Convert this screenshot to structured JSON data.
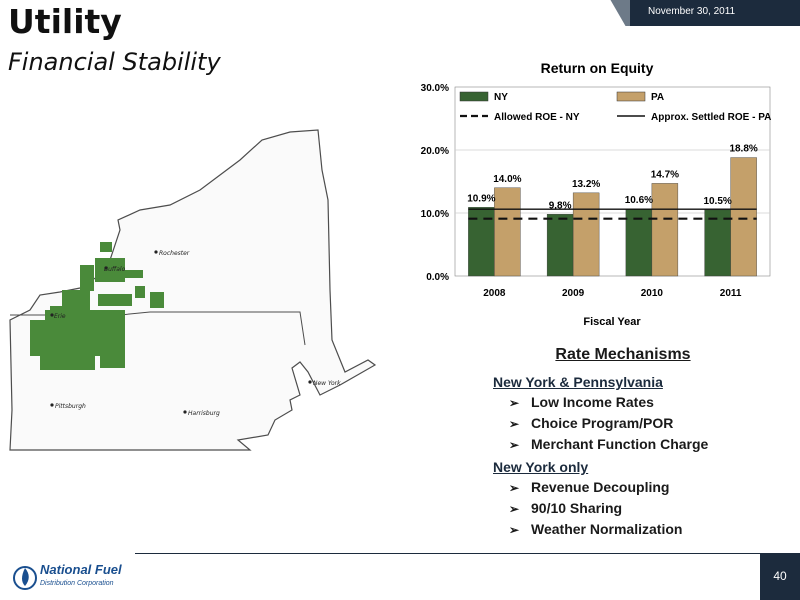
{
  "header": {
    "title": "Utility",
    "subtitle": "Financial Stability",
    "date": "November 30, 2011"
  },
  "map": {
    "cities": [
      "Rochester",
      "Buffalo",
      "Erie",
      "Pittsburgh",
      "Harrisburg",
      "New York"
    ],
    "service_area_color": "#4a8a3a"
  },
  "chart_data": {
    "type": "bar",
    "title": "Return on Equity",
    "xlabel": "Fiscal Year",
    "ylabel": "",
    "categories": [
      "2008",
      "2009",
      "2010",
      "2011"
    ],
    "series": [
      {
        "name": "NY",
        "values": [
          10.9,
          9.8,
          10.6,
          10.5
        ],
        "labels": [
          "10.9%",
          "9.8%",
          "10.6%",
          "10.5%"
        ],
        "color": "#376332"
      },
      {
        "name": "PA",
        "values": [
          14.0,
          13.2,
          14.7,
          18.8
        ],
        "labels": [
          "14.0%",
          "13.2%",
          "14.7%",
          "18.8%"
        ],
        "color": "#c4a06a"
      }
    ],
    "reference_lines": [
      {
        "name": "Allowed ROE - NY",
        "value": 9.1,
        "style": "dashed"
      },
      {
        "name": "Approx. Settled  ROE - PA",
        "value": 10.6,
        "style": "solid"
      }
    ],
    "ylim": [
      0,
      30
    ],
    "yticks": [
      "0.0%",
      "10.0%",
      "20.0%",
      "30.0%"
    ],
    "ytick_values": [
      0,
      10,
      20,
      30
    ],
    "grid": true,
    "legend": "top"
  },
  "rates": {
    "title": "Rate Mechanisms",
    "groups": [
      {
        "heading": "New York & Pennsylvania",
        "items": [
          "Low Income Rates",
          "Choice Program/POR",
          "Merchant Function Charge"
        ]
      },
      {
        "heading": "New York only",
        "items": [
          "Revenue Decoupling",
          "90/10 Sharing",
          "Weather Normalization"
        ]
      }
    ],
    "bullet": "➢"
  },
  "footer": {
    "logo_name": "National Fuel",
    "logo_sub": "Distribution Corporation",
    "page_number": "40"
  }
}
